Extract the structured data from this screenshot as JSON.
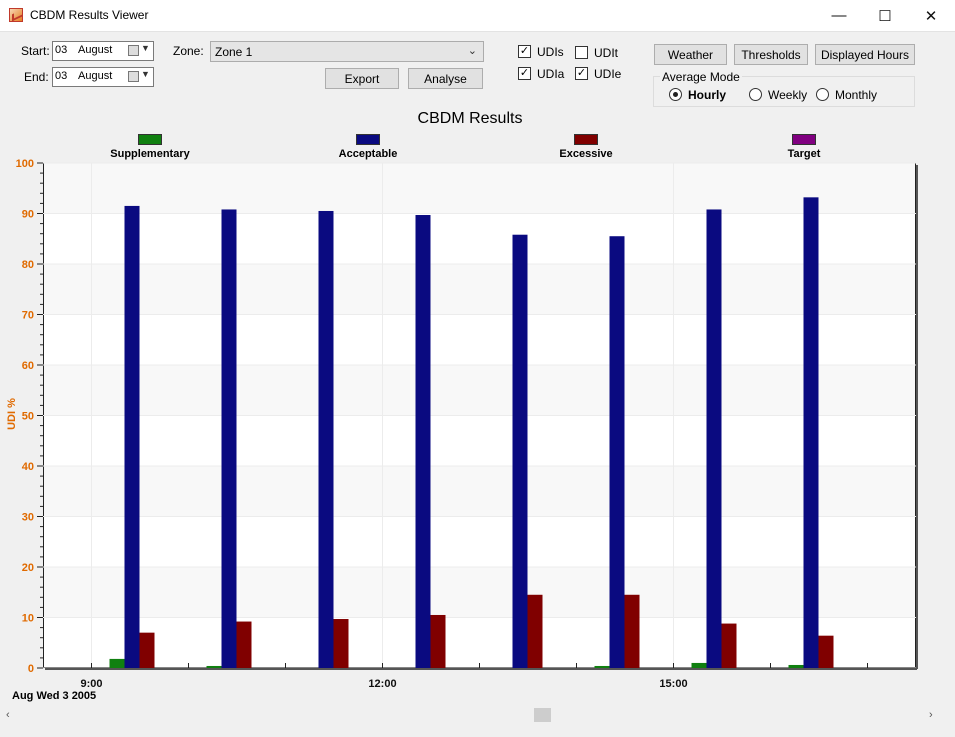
{
  "window": {
    "title": "CBDM Results Viewer",
    "minimize": "—",
    "maximize": "☐",
    "close": "✕"
  },
  "controls": {
    "start_label": "Start:",
    "start_day": "03",
    "start_month": "August",
    "end_label": "End:",
    "end_day": "03",
    "end_month": "August",
    "zone_label": "Zone:",
    "zone_value": "Zone 1",
    "export_label": "Export",
    "analyse_label": "Analyse",
    "checkboxes": [
      {
        "label": "UDIs",
        "checked": true
      },
      {
        "label": "UDIt",
        "checked": false
      },
      {
        "label": "UDIa",
        "checked": true
      },
      {
        "label": "UDIe",
        "checked": true
      }
    ],
    "weather_label": "Weather",
    "thresholds_label": "Thresholds",
    "displayed_hours_label": "Displayed Hours",
    "average_mode_label": "Average Mode",
    "average_modes": [
      {
        "label": "Hourly",
        "selected": true
      },
      {
        "label": "Weekly",
        "selected": false
      },
      {
        "label": "Monthly",
        "selected": false
      }
    ]
  },
  "chart_data": {
    "type": "bar",
    "title": "CBDM Results",
    "ylabel": "UDI %",
    "ylim": [
      0,
      100
    ],
    "yticks": [
      0,
      10,
      20,
      30,
      40,
      50,
      60,
      70,
      80,
      90,
      100
    ],
    "xlim": [
      8.5,
      17.5
    ],
    "xtick_labels": [
      {
        "hour": 9,
        "label": "9:00"
      },
      {
        "hour": 12,
        "label": "12:00"
      },
      {
        "hour": 15,
        "label": "15:00"
      }
    ],
    "x_caption": "Aug Wed 3 2005",
    "categories": [
      9.5,
      10.5,
      11.5,
      12.5,
      13.5,
      14.5,
      15.5,
      16.5
    ],
    "series": [
      {
        "name": "Supplementary",
        "color": "#108010",
        "values": [
          1.8,
          0.4,
          0,
          0,
          0,
          0.4,
          1.0,
          0.6
        ]
      },
      {
        "name": "Acceptable",
        "color": "#0a0a80",
        "values": [
          91.5,
          90.8,
          90.5,
          89.7,
          85.8,
          85.5,
          90.8,
          93.2
        ]
      },
      {
        "name": "Excessive",
        "color": "#800000",
        "values": [
          7.0,
          9.2,
          9.7,
          10.5,
          14.5,
          14.5,
          8.8,
          6.4
        ]
      },
      {
        "name": "Target",
        "color": "#800080",
        "values": [
          0,
          0,
          0,
          0,
          0,
          0,
          0,
          0
        ]
      }
    ]
  }
}
